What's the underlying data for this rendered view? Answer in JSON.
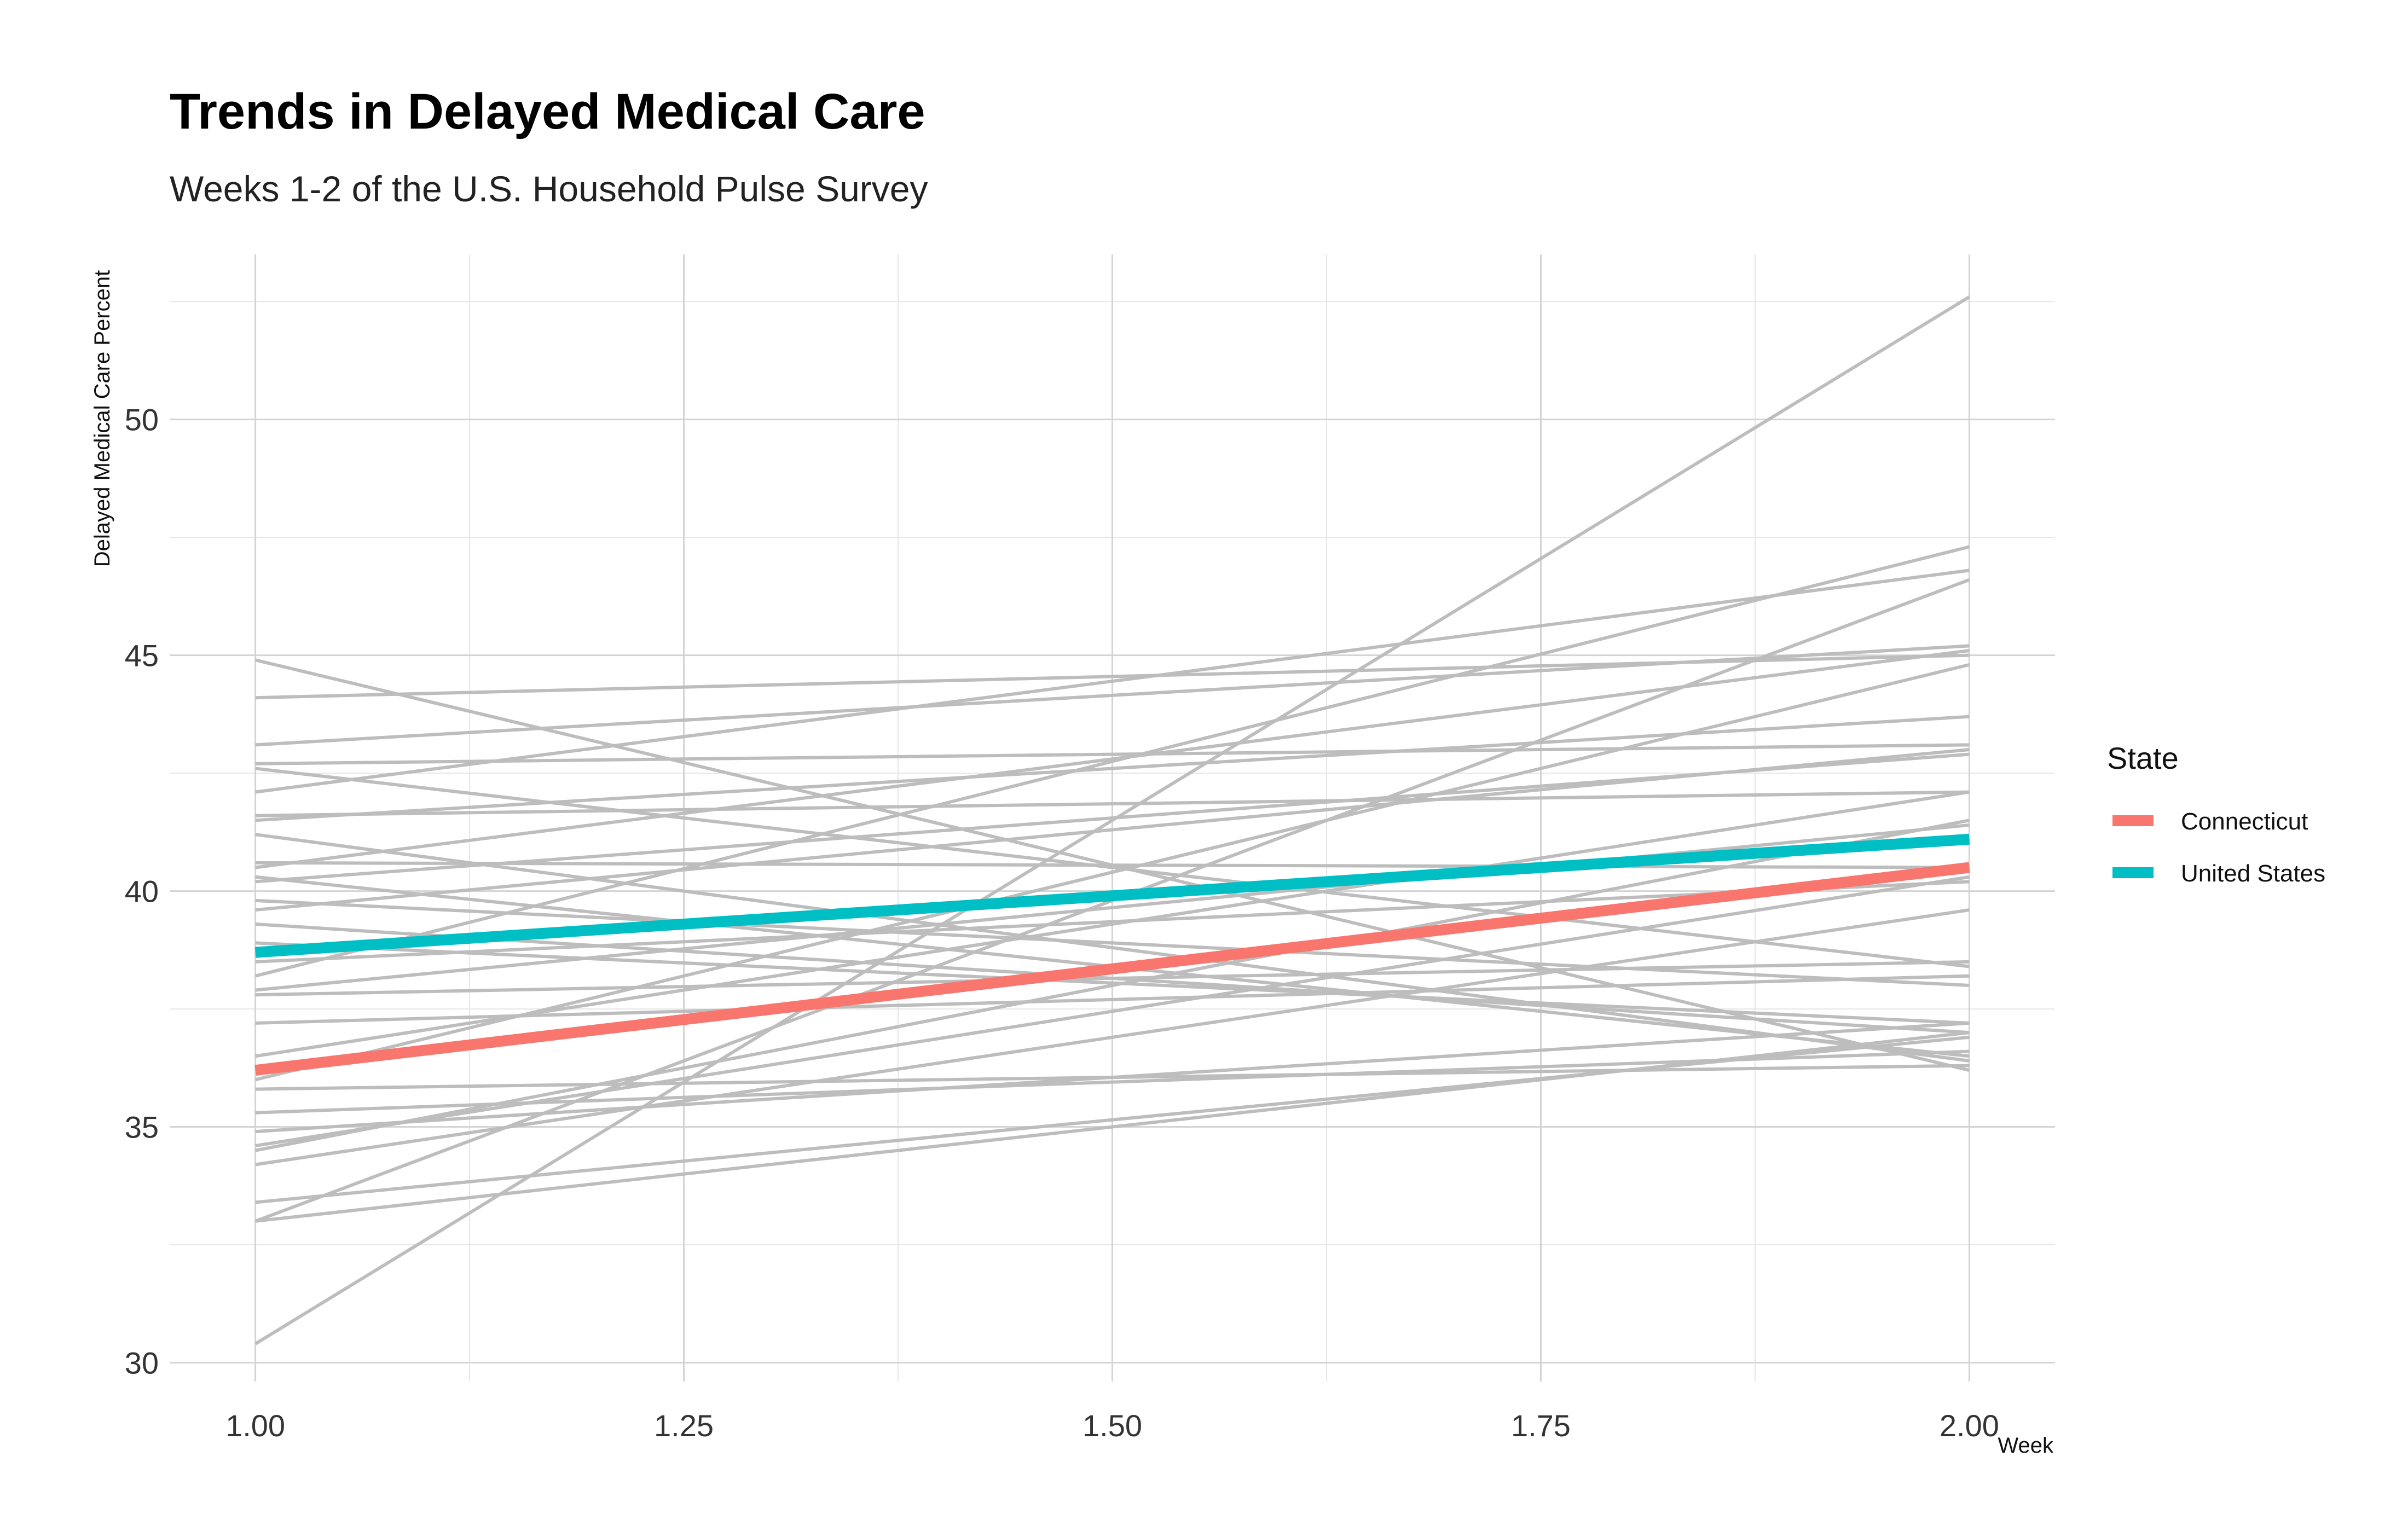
{
  "chart_data": {
    "type": "line",
    "title": "Trends in Delayed Medical Care",
    "subtitle": "Weeks 1-2 of the U.S. Household Pulse Survey",
    "xlabel": "Week",
    "ylabel": "Delayed Medical Care Percent",
    "xlim": [
      0.95,
      2.05
    ],
    "ylim": [
      29.6,
      53.5
    ],
    "x_ticks": [
      1.0,
      1.25,
      1.5,
      1.75,
      2.0
    ],
    "x_tick_labels": [
      "1.00",
      "1.25",
      "1.50",
      "1.75",
      "2.00"
    ],
    "y_ticks": [
      30,
      35,
      40,
      45,
      50
    ],
    "y_tick_labels": [
      "30",
      "35",
      "40",
      "45",
      "50"
    ],
    "grid": true,
    "legend": {
      "title": "State",
      "position": "right"
    },
    "x": [
      1,
      2
    ],
    "highlight_series": [
      {
        "name": "Connecticut",
        "color": "#F8766D",
        "values": [
          36.2,
          40.5
        ]
      },
      {
        "name": "United States",
        "color": "#00BFC4",
        "values": [
          38.7,
          41.1
        ]
      }
    ],
    "background_series_color": "#bdbdbd",
    "background_series": [
      [
        30.4,
        52.6
      ],
      [
        44.9,
        36.2
      ],
      [
        44.1,
        45.0
      ],
      [
        43.1,
        45.2
      ],
      [
        42.7,
        43.1
      ],
      [
        42.6,
        38.4
      ],
      [
        42.1,
        46.8
      ],
      [
        41.6,
        42.1
      ],
      [
        41.5,
        43.7
      ],
      [
        41.2,
        36.4
      ],
      [
        40.6,
        40.5
      ],
      [
        40.5,
        45.1
      ],
      [
        40.3,
        36.5
      ],
      [
        40.2,
        42.9
      ],
      [
        39.8,
        38.0
      ],
      [
        39.6,
        43.0
      ],
      [
        39.3,
        37.0
      ],
      [
        38.9,
        37.2
      ],
      [
        38.5,
        40.2
      ],
      [
        38.2,
        47.3
      ],
      [
        37.9,
        41.4
      ],
      [
        37.8,
        38.5
      ],
      [
        37.2,
        38.2
      ],
      [
        36.5,
        42.1
      ],
      [
        36.0,
        44.8
      ],
      [
        35.8,
        36.3
      ],
      [
        35.3,
        36.6
      ],
      [
        34.9,
        37.2
      ],
      [
        34.6,
        40.3
      ],
      [
        34.5,
        41.5
      ],
      [
        34.2,
        39.6
      ],
      [
        33.4,
        36.9
      ],
      [
        33.0,
        46.6
      ],
      [
        33.0,
        37.0
      ]
    ]
  }
}
